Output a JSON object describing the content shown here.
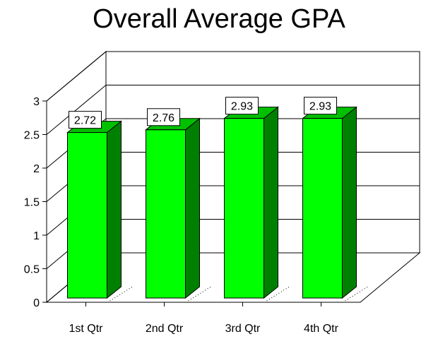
{
  "chart_data": {
    "type": "bar",
    "title": "Overall Average GPA",
    "categories": [
      "1st Qtr",
      "2nd Qtr",
      "3rd Qtr",
      "4th Qtr"
    ],
    "values": [
      2.72,
      2.76,
      2.93,
      2.93
    ],
    "data_labels": [
      "2.72",
      "2.76",
      "2.93",
      "2.93"
    ],
    "yticks": [
      "0",
      "0.5",
      "1",
      "1.5",
      "2",
      "2.5",
      "3"
    ],
    "ylim": [
      0,
      3
    ],
    "xlabel": "",
    "ylabel": "",
    "grid": true,
    "legend": "none",
    "style": "3d-column",
    "colors": {
      "front": "#00ff00",
      "side": "#008000",
      "top": "#00c000",
      "edge": "#000000"
    }
  }
}
